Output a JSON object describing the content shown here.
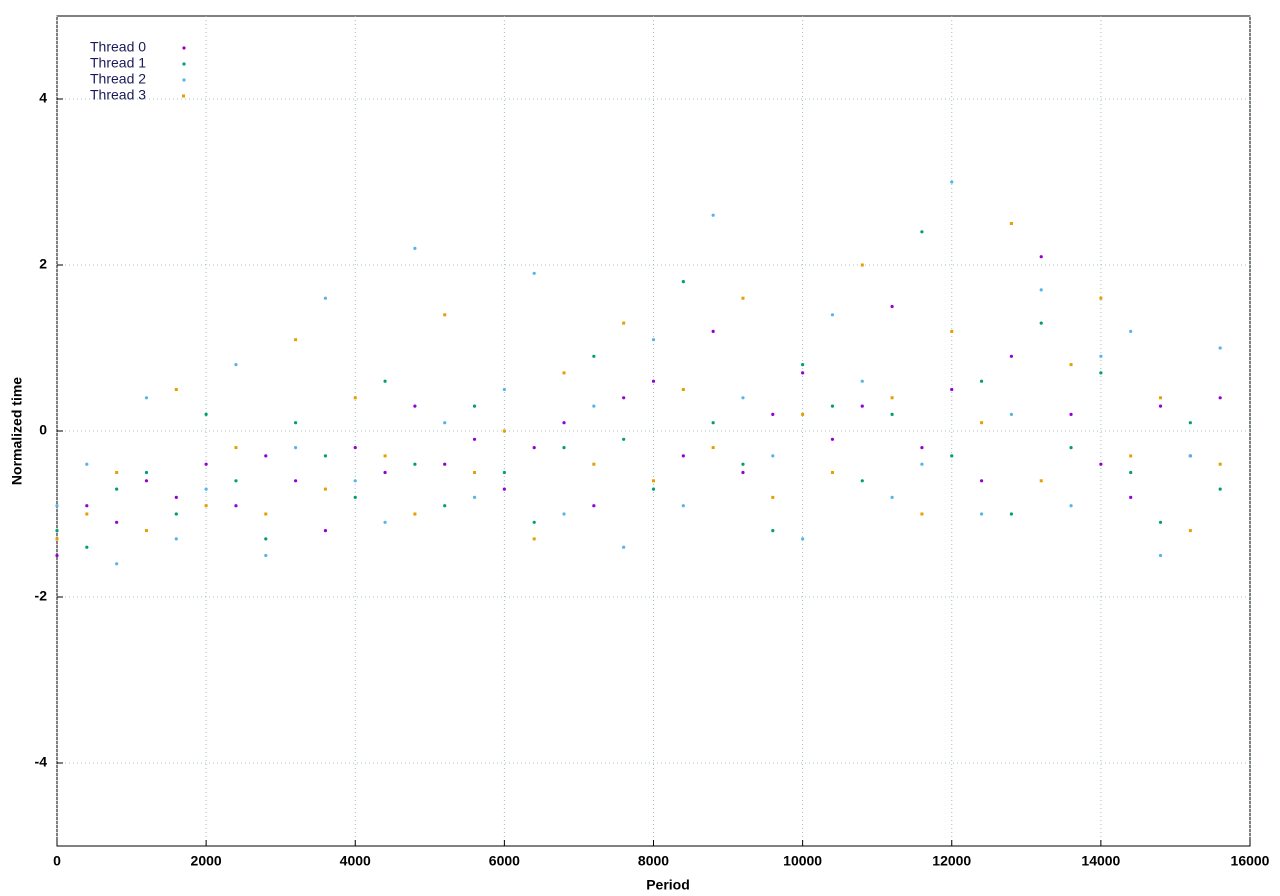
{
  "chart_data": {
    "type": "scatter",
    "x_label": "Period",
    "y_label": "Normalized time",
    "xlim": [
      0,
      16000
    ],
    "ylim": [
      -5,
      5
    ],
    "xticks": [
      0,
      2000,
      4000,
      6000,
      8000,
      10000,
      12000,
      14000,
      16000
    ],
    "yticks": [
      -4,
      -2,
      0,
      2,
      4
    ],
    "grid": true,
    "legend": "top-left",
    "x": [
      0,
      400,
      800,
      1200,
      1600,
      2000,
      2400,
      2800,
      3200,
      3600,
      4000,
      4400,
      4800,
      5200,
      5600,
      6000,
      6400,
      6800,
      7200,
      7600,
      8000,
      8400,
      8800,
      9200,
      9600,
      10000,
      10400,
      10800,
      11200,
      11600,
      12000,
      12400,
      12800,
      13200,
      13600,
      14000,
      14400,
      14800,
      15200,
      15600
    ],
    "series": [
      {
        "name": "Thread 0",
        "color": "#9400d3",
        "values": [
          -1.5,
          -0.9,
          -1.1,
          -0.6,
          -0.8,
          -0.4,
          -0.9,
          -0.3,
          -0.6,
          -1.2,
          -0.2,
          -0.5,
          0.3,
          -0.4,
          -0.1,
          -0.7,
          -0.2,
          0.1,
          -0.9,
          0.4,
          0.6,
          -0.3,
          1.2,
          -0.5,
          0.2,
          0.7,
          -0.1,
          0.3,
          1.5,
          -0.2,
          0.5,
          -0.6,
          0.9,
          2.1,
          0.2,
          -0.4,
          -0.8,
          0.3,
          -0.3,
          0.4
        ]
      },
      {
        "name": "Thread 1",
        "color": "#009e73",
        "values": [
          -1.2,
          -1.4,
          -0.7,
          -0.5,
          -1.0,
          0.2,
          -0.6,
          -1.3,
          0.1,
          -0.3,
          -0.8,
          0.6,
          -0.4,
          -0.9,
          0.3,
          -0.5,
          -1.1,
          -0.2,
          0.9,
          -0.1,
          -0.7,
          1.8,
          0.1,
          -0.4,
          -1.2,
          0.8,
          0.3,
          -0.6,
          0.2,
          2.4,
          -0.3,
          0.6,
          -1.0,
          1.3,
          -0.2,
          0.7,
          -0.5,
          -1.1,
          0.1,
          -0.7
        ]
      },
      {
        "name": "Thread 2",
        "color": "#56b4e9",
        "values": [
          -0.9,
          -0.4,
          -1.6,
          0.4,
          -1.3,
          -0.7,
          0.8,
          -1.5,
          -0.2,
          1.6,
          -0.6,
          -1.1,
          2.2,
          0.1,
          -0.8,
          0.5,
          1.9,
          -1.0,
          0.3,
          -1.4,
          1.1,
          -0.9,
          2.6,
          0.4,
          -0.3,
          -1.3,
          1.4,
          0.6,
          -0.8,
          -0.4,
          3.0,
          -1.0,
          0.2,
          1.7,
          -0.9,
          0.9,
          1.2,
          -1.5,
          -0.3,
          1.0
        ]
      },
      {
        "name": "Thread 3",
        "color": "#e69f00",
        "values": [
          -1.3,
          -1.0,
          -0.5,
          -1.2,
          0.5,
          -0.9,
          -0.2,
          -1.0,
          1.1,
          -0.7,
          0.4,
          -0.3,
          -1.0,
          1.4,
          -0.5,
          0.0,
          -1.3,
          0.7,
          -0.4,
          1.3,
          -0.6,
          0.5,
          -0.2,
          1.6,
          -0.8,
          0.2,
          -0.5,
          2.0,
          0.4,
          -1.0,
          1.2,
          0.1,
          2.5,
          -0.6,
          0.8,
          1.6,
          -0.3,
          0.4,
          -1.2,
          -0.4
        ]
      }
    ]
  }
}
